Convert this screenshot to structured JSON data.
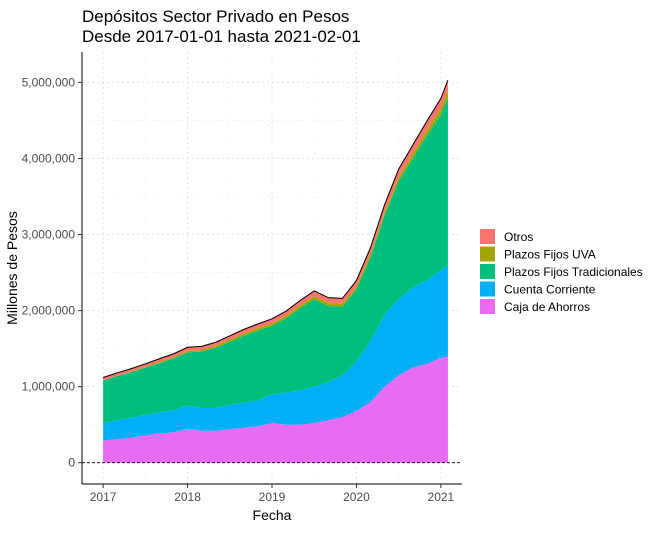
{
  "chart_data": {
    "type": "area",
    "title": "Depósitos Sector Privado en Pesos",
    "subtitle": "Desde 2017-01-01 hasta 2021-02-01",
    "xlabel": "Fecha",
    "ylabel": "Millones de Pesos",
    "stacked": true,
    "grid": true,
    "legend_position": "right",
    "x_ticks": [
      {
        "label": "2017",
        "value": 2017.0
      },
      {
        "label": "2018",
        "value": 2018.0
      },
      {
        "label": "2019",
        "value": 2019.0
      },
      {
        "label": "2020",
        "value": 2020.0
      },
      {
        "label": "2021",
        "value": 2021.0
      }
    ],
    "y_ticks": [
      {
        "label": "0",
        "value": 0
      },
      {
        "label": "1,000,000",
        "value": 1000000
      },
      {
        "label": "2,000,000",
        "value": 2000000
      },
      {
        "label": "3,000,000",
        "value": 3000000
      },
      {
        "label": "4,000,000",
        "value": 4000000
      },
      {
        "label": "5,000,000",
        "value": 5000000
      }
    ],
    "xlim": [
      2016.75,
      2021.25
    ],
    "ylim": [
      -280000,
      5400000
    ],
    "x": [
      "2017-01",
      "2017-03",
      "2017-05",
      "2017-07",
      "2017-09",
      "2017-11",
      "2018-01",
      "2018-03",
      "2018-05",
      "2018-07",
      "2018-09",
      "2018-11",
      "2019-01",
      "2019-03",
      "2019-05",
      "2019-07",
      "2019-09",
      "2019-11",
      "2020-01",
      "2020-03",
      "2020-05",
      "2020-07",
      "2020-09",
      "2020-11",
      "2021-01",
      "2021-02"
    ],
    "series": [
      {
        "name": "Caja de Ahorros",
        "color": "#E76BF3",
        "values": [
          290000,
          310000,
          330000,
          360000,
          380000,
          400000,
          450000,
          420000,
          420000,
          440000,
          460000,
          480000,
          520000,
          500000,
          500000,
          520000,
          560000,
          600000,
          680000,
          800000,
          1000000,
          1150000,
          1250000,
          1300000,
          1380000,
          1400000
        ]
      },
      {
        "name": "Cuenta Corriente",
        "color": "#00B0F6",
        "values": [
          230000,
          250000,
          260000,
          270000,
          280000,
          290000,
          300000,
          300000,
          300000,
          320000,
          330000,
          340000,
          380000,
          420000,
          450000,
          480000,
          500000,
          550000,
          650000,
          800000,
          950000,
          1000000,
          1050000,
          1100000,
          1150000,
          1200000
        ]
      },
      {
        "name": "Plazos Fijos Tradicionales",
        "color": "#00BF7D",
        "values": [
          560000,
          580000,
          600000,
          620000,
          650000,
          680000,
          700000,
          740000,
          790000,
          830000,
          880000,
          920000,
          900000,
          980000,
          1080000,
          1150000,
          1000000,
          900000,
          950000,
          1100000,
          1300000,
          1550000,
          1700000,
          1900000,
          2050000,
          2200000
        ]
      },
      {
        "name": "Plazos Fijos UVA",
        "color": "#A3A500",
        "values": [
          0,
          2000,
          5000,
          8000,
          12000,
          16000,
          20000,
          22000,
          24000,
          26000,
          28000,
          30000,
          32000,
          34000,
          38000,
          42000,
          40000,
          38000,
          36000,
          38000,
          42000,
          50000,
          60000,
          70000,
          80000,
          90000
        ]
      },
      {
        "name": "Otros",
        "color": "#F8766D",
        "values": [
          40000,
          40000,
          42000,
          42000,
          45000,
          45000,
          48000,
          48000,
          50000,
          52000,
          55000,
          55000,
          60000,
          60000,
          65000,
          68000,
          70000,
          72000,
          80000,
          90000,
          100000,
          110000,
          115000,
          120000,
          130000,
          140000
        ]
      }
    ]
  }
}
